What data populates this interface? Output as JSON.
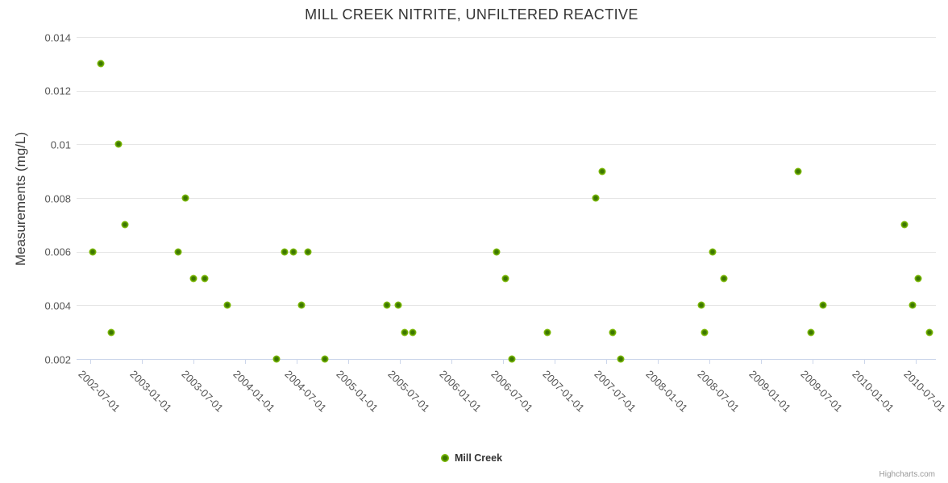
{
  "chart": {
    "title": "MILL CREEK NITRITE, UNFILTERED REACTIVE",
    "credits": "Highcharts.com"
  },
  "legend": {
    "items": [
      {
        "label": "Mill Creek",
        "marker": "green-dot-icon"
      }
    ]
  },
  "colors": {
    "series_green": "#7ab800",
    "series_green_center": "#3c7700",
    "grid": "#e6e6e6",
    "axis_line": "#ccd6eb",
    "title_text": "#333333",
    "label_text": "#555555",
    "credits_text": "#999999"
  },
  "chart_data": {
    "type": "scatter",
    "title": "MILL CREEK NITRITE, UNFILTERED REACTIVE",
    "xlabel": "",
    "ylabel": "Measurements (mg/L)",
    "legend_position": "bottom-center",
    "grid": "horizontal-only",
    "ylim": [
      0.002,
      0.014
    ],
    "y_tick_labels": [
      "0.014",
      "0.012",
      "0.01",
      "0.008",
      "0.006",
      "0.004",
      "0.002"
    ],
    "y_tick_values": [
      0.014,
      0.012,
      0.01,
      0.008,
      0.006,
      0.004,
      0.002
    ],
    "x_tick_labels": [
      "2002-07-01",
      "2003-01-01",
      "2003-07-01",
      "2004-01-01",
      "2004-07-01",
      "2005-01-01",
      "2005-07-01",
      "2006-01-01",
      "2006-07-01",
      "2007-01-01",
      "2007-07-01",
      "2008-01-01",
      "2008-07-01",
      "2009-01-01",
      "2009-07-01",
      "2010-01-01",
      "2010-07-01"
    ],
    "xlim": [
      "2002-07-01",
      "2010-07-01"
    ],
    "series": [
      {
        "name": "Mill Creek",
        "color": "#7ab800",
        "color_center": "#3c7700",
        "points": [
          {
            "date": "2002-07-10",
            "value": 0.006
          },
          {
            "date": "2002-08-07",
            "value": 0.013
          },
          {
            "date": "2002-09-12",
            "value": 0.003
          },
          {
            "date": "2002-10-09",
            "value": 0.01
          },
          {
            "date": "2002-11-01",
            "value": 0.007
          },
          {
            "date": "2003-05-07",
            "value": 0.006
          },
          {
            "date": "2003-06-02",
            "value": 0.008
          },
          {
            "date": "2003-07-01",
            "value": 0.005
          },
          {
            "date": "2003-08-10",
            "value": 0.005
          },
          {
            "date": "2003-10-29",
            "value": 0.004
          },
          {
            "date": "2004-04-19",
            "value": 0.002
          },
          {
            "date": "2004-05-20",
            "value": 0.006
          },
          {
            "date": "2004-06-18",
            "value": 0.006
          },
          {
            "date": "2004-07-18",
            "value": 0.004
          },
          {
            "date": "2004-08-10",
            "value": 0.006
          },
          {
            "date": "2004-10-09",
            "value": 0.002
          },
          {
            "date": "2005-05-16",
            "value": 0.004
          },
          {
            "date": "2005-06-24",
            "value": 0.004
          },
          {
            "date": "2005-07-18",
            "value": 0.003
          },
          {
            "date": "2005-08-16",
            "value": 0.003
          },
          {
            "date": "2006-06-08",
            "value": 0.006
          },
          {
            "date": "2006-07-10",
            "value": 0.005
          },
          {
            "date": "2006-08-02",
            "value": 0.002
          },
          {
            "date": "2006-12-06",
            "value": 0.003
          },
          {
            "date": "2007-05-25",
            "value": 0.008
          },
          {
            "date": "2007-06-17",
            "value": 0.009
          },
          {
            "date": "2007-07-24",
            "value": 0.003
          },
          {
            "date": "2007-08-22",
            "value": 0.002
          },
          {
            "date": "2008-06-02",
            "value": 0.004
          },
          {
            "date": "2008-06-14",
            "value": 0.003
          },
          {
            "date": "2008-07-12",
            "value": 0.006
          },
          {
            "date": "2008-08-22",
            "value": 0.005
          },
          {
            "date": "2009-05-10",
            "value": 0.009
          },
          {
            "date": "2009-06-25",
            "value": 0.003
          },
          {
            "date": "2009-08-07",
            "value": 0.004
          },
          {
            "date": "2010-05-22",
            "value": 0.007
          },
          {
            "date": "2010-06-20",
            "value": 0.004
          },
          {
            "date": "2010-07-10",
            "value": 0.005
          },
          {
            "date": "2010-08-19",
            "value": 0.003
          }
        ]
      }
    ]
  }
}
